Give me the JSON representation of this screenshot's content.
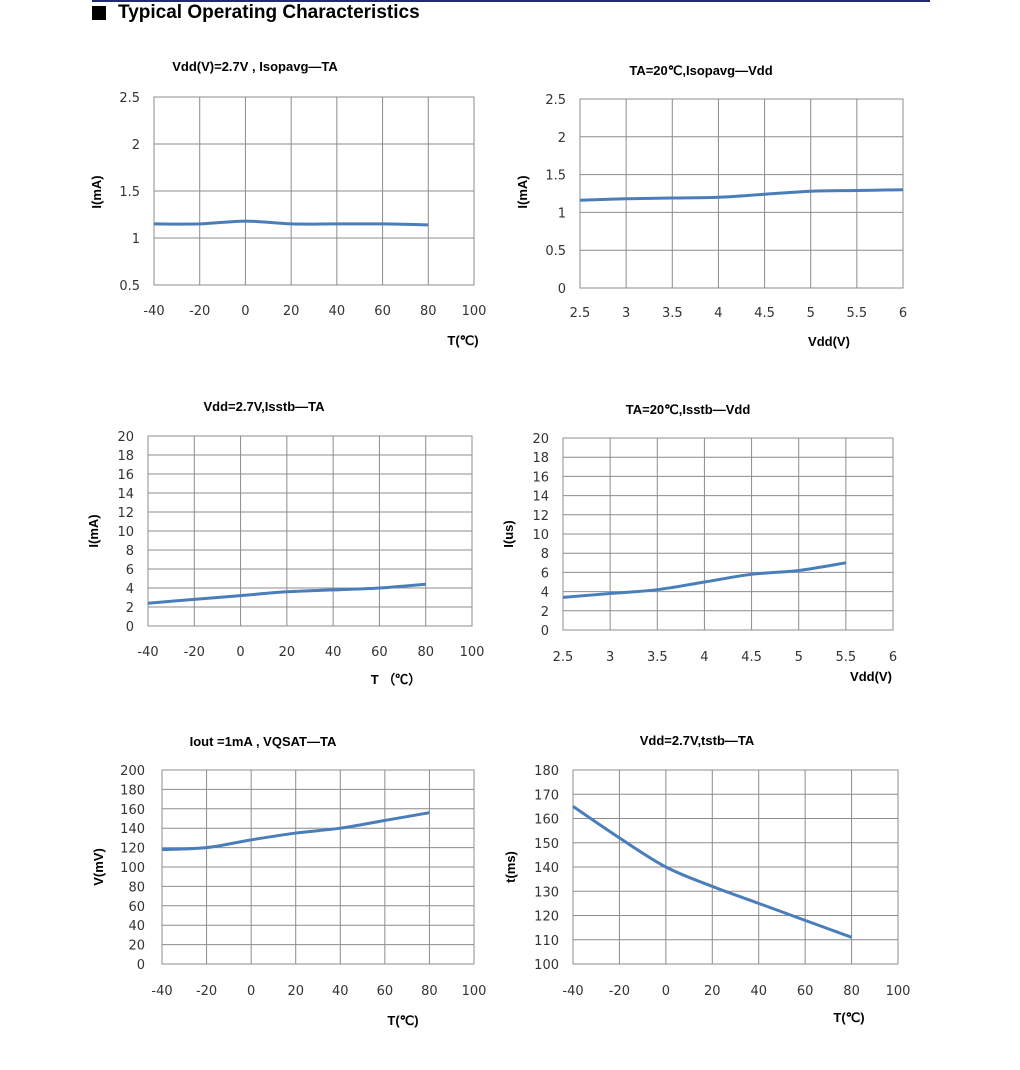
{
  "heading": "Typical Operating Characteristics",
  "colors": {
    "line": "#4a7ebb",
    "grid": "#8c8c8c",
    "heading_rule": "#1f2d6b"
  },
  "chart_data": [
    {
      "type": "line",
      "title": "Vdd(V)=2.7V   , Isopavg—TA",
      "xlabel": "T(℃)",
      "ylabel": "I(mA)",
      "x_ticks": [
        "-40",
        "-20",
        "0",
        "20",
        "40",
        "60",
        "80",
        "100"
      ],
      "y_ticks": [
        "0.5",
        "1",
        "1.5",
        "2",
        "2.5"
      ],
      "xlim": [
        -40,
        100
      ],
      "ylim": [
        0.5,
        2.5
      ],
      "series": [
        {
          "x": [
            -40,
            -20,
            0,
            20,
            40,
            60,
            80
          ],
          "y": [
            1.15,
            1.15,
            1.18,
            1.15,
            1.15,
            1.15,
            1.14
          ]
        }
      ]
    },
    {
      "type": "line",
      "title": "TA=20℃,Isopavg—Vdd",
      "xlabel": "Vdd(V)",
      "ylabel": "I(mA)",
      "x_ticks": [
        "2.5",
        "3",
        "3.5",
        "4",
        "4.5",
        "5",
        "5.5",
        "6"
      ],
      "y_ticks": [
        "0",
        "0.5",
        "1",
        "1.5",
        "2",
        "2.5"
      ],
      "xlim": [
        2.5,
        6
      ],
      "ylim": [
        0,
        2.5
      ],
      "series": [
        {
          "x": [
            2.5,
            3,
            3.5,
            4,
            4.5,
            5,
            5.5,
            6
          ],
          "y": [
            1.16,
            1.18,
            1.19,
            1.2,
            1.24,
            1.28,
            1.29,
            1.3
          ]
        }
      ]
    },
    {
      "type": "line",
      "title": "Vdd=2.7V,Isstb—TA",
      "xlabel": "T （℃）",
      "ylabel": "I(mA)",
      "x_ticks": [
        "-40",
        "-20",
        "0",
        "20",
        "40",
        "60",
        "80",
        "100"
      ],
      "y_ticks": [
        "0",
        "2",
        "4",
        "6",
        "8",
        "10",
        "12",
        "14",
        "16",
        "18",
        "20"
      ],
      "xlim": [
        -40,
        100
      ],
      "ylim": [
        0,
        20
      ],
      "series": [
        {
          "x": [
            -40,
            -20,
            0,
            20,
            40,
            60,
            80
          ],
          "y": [
            2.4,
            2.8,
            3.2,
            3.6,
            3.8,
            4.0,
            4.4
          ]
        }
      ]
    },
    {
      "type": "line",
      "title": "TA=20℃,Isstb—Vdd",
      "xlabel": "Vdd(V)",
      "ylabel": "I(us)",
      "x_ticks": [
        "2.5",
        "3",
        "3.5",
        "4",
        "4.5",
        "5",
        "5.5",
        "6"
      ],
      "y_ticks": [
        "0",
        "2",
        "4",
        "6",
        "8",
        "10",
        "12",
        "14",
        "16",
        "18",
        "20"
      ],
      "xlim": [
        2.5,
        6
      ],
      "ylim": [
        0,
        20
      ],
      "series": [
        {
          "x": [
            2.5,
            3,
            3.5,
            4,
            4.5,
            5,
            5.5
          ],
          "y": [
            3.4,
            3.8,
            4.2,
            5.0,
            5.8,
            6.2,
            7.0
          ]
        }
      ]
    },
    {
      "type": "line",
      "title": "Iout =1mA   , VQSAT—TA",
      "xlabel": "T(℃)",
      "ylabel": "V(mV)",
      "x_ticks": [
        "-40",
        "-20",
        "0",
        "20",
        "40",
        "60",
        "80",
        "100"
      ],
      "y_ticks": [
        "0",
        "20",
        "40",
        "60",
        "80",
        "100",
        "120",
        "140",
        "160",
        "180",
        "200"
      ],
      "xlim": [
        -40,
        100
      ],
      "ylim": [
        0,
        200
      ],
      "series": [
        {
          "x": [
            -40,
            -20,
            0,
            20,
            40,
            60,
            80
          ],
          "y": [
            118,
            120,
            128,
            135,
            140,
            148,
            156
          ]
        }
      ]
    },
    {
      "type": "line",
      "title": "Vdd=2.7V,tstb—TA",
      "xlabel": "T(℃)",
      "ylabel": "t(ms)",
      "x_ticks": [
        "-40",
        "-20",
        "0",
        "20",
        "40",
        "60",
        "80",
        "100"
      ],
      "y_ticks": [
        "100",
        "110",
        "120",
        "130",
        "140",
        "150",
        "160",
        "170",
        "180"
      ],
      "xlim": [
        -40,
        100
      ],
      "ylim": [
        100,
        180
      ],
      "series": [
        {
          "x": [
            -40,
            -20,
            0,
            20,
            40,
            60,
            80
          ],
          "y": [
            165,
            152,
            140,
            132,
            125,
            118,
            111
          ]
        }
      ]
    }
  ]
}
